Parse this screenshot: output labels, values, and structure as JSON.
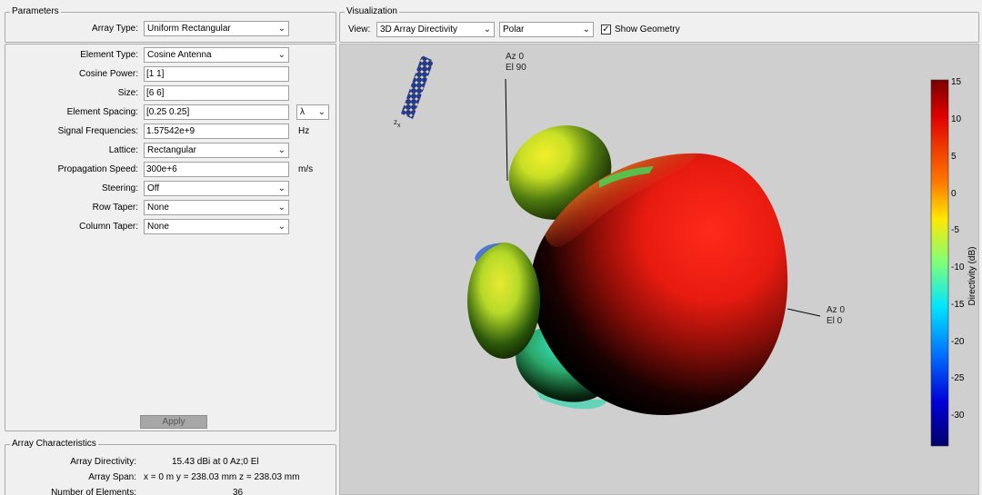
{
  "parameters": {
    "title": "Parameters",
    "array_type_label": "Array Type:",
    "array_type_value": "Uniform Rectangular",
    "fields": {
      "element_type": {
        "label": "Element Type:",
        "value": "Cosine Antenna"
      },
      "cosine_power": {
        "label": "Cosine Power:",
        "value": "[1 1]"
      },
      "size": {
        "label": "Size:",
        "value": "[6  6]"
      },
      "element_spacing": {
        "label": "Element Spacing:",
        "value": "[0.25 0.25]",
        "unit": "λ"
      },
      "signal_frequencies": {
        "label": "Signal Frequencies:",
        "value": "1.57542e+9",
        "unit": "Hz"
      },
      "lattice": {
        "label": "Lattice:",
        "value": "Rectangular"
      },
      "propagation_speed": {
        "label": "Propagation Speed:",
        "value": "300e+6",
        "unit": "m/s"
      },
      "steering": {
        "label": "Steering:",
        "value": "Off"
      },
      "row_taper": {
        "label": "Row Taper:",
        "value": "None"
      },
      "column_taper": {
        "label": "Column Taper:",
        "value": "None"
      }
    },
    "apply_label": "Apply"
  },
  "characteristics": {
    "title": "Array Characteristics",
    "directivity_label": "Array Directivity:",
    "directivity_value": "15.43 dBi at 0 Az;0 El",
    "span_label": "Array Span:",
    "span_value": "x = 0 m  y = 238.03 mm  z = 238.03 mm",
    "num_elements_label": "Number of Elements:",
    "num_elements_value": "36"
  },
  "visualization": {
    "title": "Visualization",
    "view_label": "View:",
    "view_value": "3D Array Directivity",
    "coord_value": "Polar",
    "show_geometry_label": "Show Geometry",
    "show_geometry_checked": "✓",
    "axis_label_top_az": "Az 0",
    "axis_label_top_el": "El 90",
    "axis_label_right_az": "Az 0",
    "axis_label_right_el": "El 0",
    "geometry_axis_label": "z\nx"
  },
  "colorbar": {
    "label": "Directivity (dB)",
    "ticks": [
      "15",
      "10",
      "5",
      "0",
      "-5",
      "-10",
      "-15",
      "-20",
      "-25",
      "-30"
    ]
  },
  "colors": {
    "panel_bg": "#f0f0f0",
    "viz_bg": "#cfcfcf"
  }
}
